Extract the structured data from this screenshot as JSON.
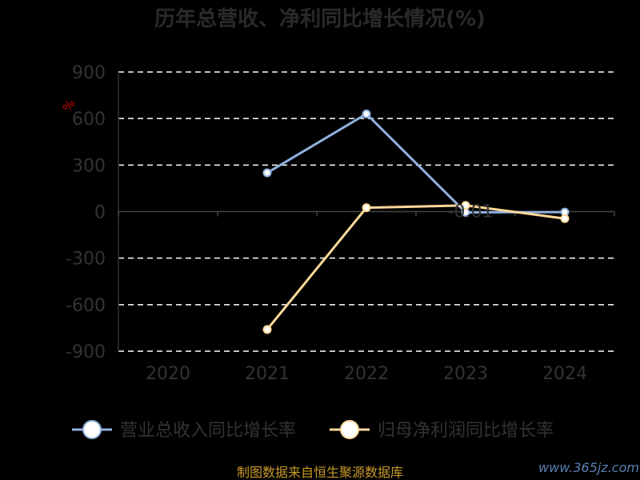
{
  "chart_data": {
    "type": "line",
    "title": "历年总营收、净利同比增长情况(%)",
    "ylabel": "%",
    "categories": [
      "2020",
      "2021",
      "2022",
      "2023",
      "2024"
    ],
    "y_ticks": [
      900,
      600,
      300,
      0,
      -300,
      -600,
      -900
    ],
    "ylim": [
      -900,
      900
    ],
    "grid": true,
    "legend_position": "bottom",
    "series": [
      {
        "name": "营业总收入同比增长率",
        "color": "#8fb0de",
        "values": [
          null,
          250,
          630,
          -5,
          -3
        ]
      },
      {
        "name": "归母净利润同比增长率",
        "color": "#ffd89a",
        "values": [
          null,
          -760,
          25,
          40,
          -45
        ]
      }
    ],
    "annotation": "-0.01"
  },
  "footer": {
    "source": "制图数据来自恒生聚源数据库",
    "watermark": "www.365jz.com"
  }
}
